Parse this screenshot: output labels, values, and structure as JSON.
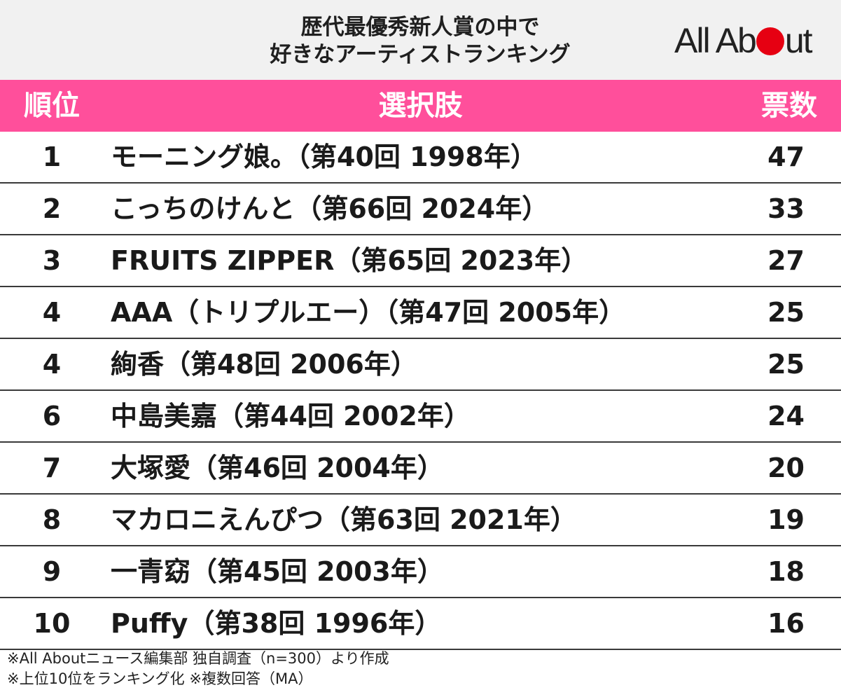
{
  "title_line1": "歴代最優秀新人賞の中で",
  "title_line2": "好きなアーティストランキング",
  "logo": {
    "text_before": "All Ab",
    "text_after": "ut",
    "dot_color": "#e60012"
  },
  "colors": {
    "header_bg": "#f1f1f1",
    "column_header_bg": "#ff4f9b",
    "logo_dot": "#e60012"
  },
  "columns": {
    "rank": "順位",
    "choice": "選択肢",
    "votes": "票数"
  },
  "notes": [
    "※All Aboutニュース編集部 独自調査（n=300）より作成",
    "※上位10位をランキング化 ※複数回答（MA）"
  ],
  "chart_data": {
    "type": "table",
    "title": "歴代最優秀新人賞の中で 好きなアーティストランキング",
    "columns": [
      "順位",
      "選択肢",
      "票数"
    ],
    "rows": [
      {
        "rank": "1",
        "choice": "モーニング娘。（第40回 1998年）",
        "votes": 47
      },
      {
        "rank": "2",
        "choice": "こっちのけんと（第66回 2024年）",
        "votes": 33
      },
      {
        "rank": "3",
        "choice": "FRUITS ZIPPER（第65回 2023年）",
        "votes": 27
      },
      {
        "rank": "4",
        "choice": "AAA（トリプルエー）（第47回 2005年）",
        "votes": 25
      },
      {
        "rank": "4",
        "choice": "絢香（第48回 2006年）",
        "votes": 25
      },
      {
        "rank": "6",
        "choice": "中島美嘉（第44回 2002年）",
        "votes": 24
      },
      {
        "rank": "7",
        "choice": "大塚愛（第46回 2004年）",
        "votes": 20
      },
      {
        "rank": "8",
        "choice": "マカロニえんぴつ（第63回 2021年）",
        "votes": 19
      },
      {
        "rank": "9",
        "choice": "一青窈（第45回 2003年）",
        "votes": 18
      },
      {
        "rank": "10",
        "choice": "Puffy（第38回 1996年）",
        "votes": 16
      }
    ]
  }
}
